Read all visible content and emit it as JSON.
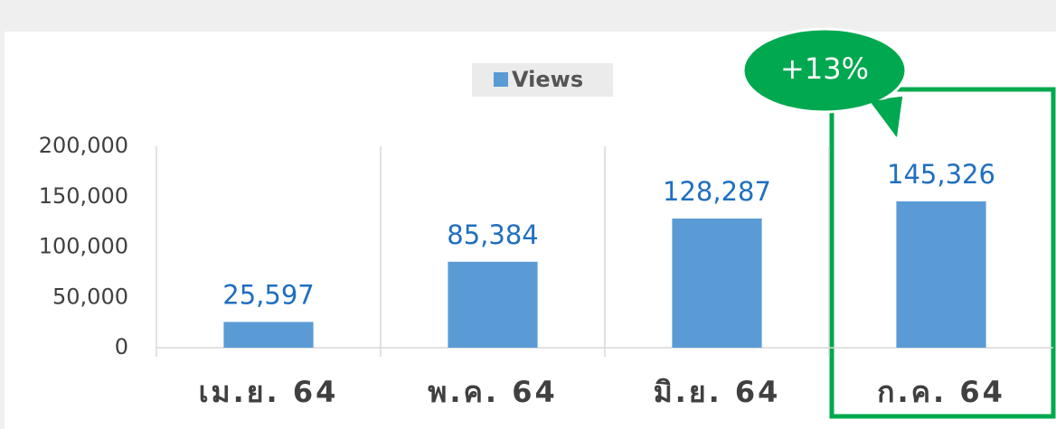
{
  "chart_data": {
    "type": "bar",
    "legend": "Views",
    "annotation": "+13%",
    "categories": [
      "เม.ย. 64",
      "พ.ค. 64",
      "มิ.ย. 64",
      "ก.ค. 64"
    ],
    "values": [
      25597,
      85384,
      128287,
      145326
    ],
    "value_labels": [
      "25,597",
      "85,384",
      "128,287",
      "145,326"
    ],
    "color": "#5b9bd5",
    "ylim": [
      0,
      200000
    ],
    "yticks": [
      0,
      {
        "value": 50000,
        "label": "50,000"
      },
      {
        "value": 100000,
        "label": "100,000"
      },
      {
        "value": 150000,
        "label": "150,000"
      },
      {
        "value": 200000,
        "label": "200,000"
      }
    ],
    "grid": false
  }
}
